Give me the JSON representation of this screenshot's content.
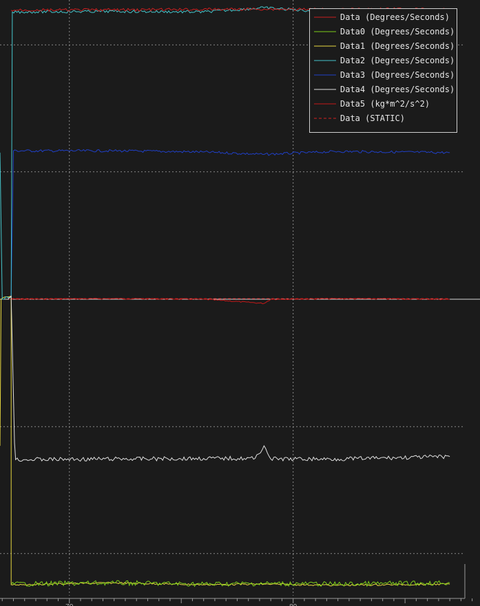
{
  "chart_data": {
    "type": "line",
    "title": "",
    "xlabel": "",
    "ylabel": "",
    "xlim": [
      66.9,
      88.35
    ],
    "ylim": [
      0,
      1
    ],
    "grid": true,
    "legend_placement": "top-right",
    "x_ticks": [
      {
        "value": 70,
        "label": "70"
      },
      {
        "value": 80,
        "label": "80"
      }
    ],
    "series": [
      {
        "name": "Data (Degrees/Seconds)",
        "color": "#cc1f1f",
        "style": "solid",
        "points": [
          [
            67.4,
            0.983
          ],
          [
            75.0,
            0.984
          ],
          [
            78.7,
            0.985
          ],
          [
            82.0,
            0.984
          ],
          [
            85.0,
            0.985
          ],
          [
            87.0,
            0.984
          ]
        ]
      },
      {
        "name": "Data0 (Degrees/Seconds)",
        "color": "#7ecf1a",
        "style": "solid",
        "points": [
          [
            67.4,
            0.024
          ],
          [
            72.0,
            0.026
          ],
          [
            76.0,
            0.024
          ],
          [
            78.7,
            0.025
          ],
          [
            82.0,
            0.024
          ],
          [
            87.0,
            0.026
          ]
        ]
      },
      {
        "name": "Data1 (Degrees/Seconds)",
        "color": "#e8d840",
        "style": "solid",
        "points": [
          [
            66.9,
            0.255
          ],
          [
            66.95,
            0.5
          ],
          [
            67.2,
            0.504
          ],
          [
            67.4,
            0.505
          ],
          [
            67.4,
            0.023
          ],
          [
            72.0,
            0.026
          ],
          [
            76.0,
            0.023
          ],
          [
            78.7,
            0.024
          ],
          [
            82.0,
            0.022
          ],
          [
            87.0,
            0.024
          ]
        ]
      },
      {
        "name": "Data2 (Degrees/Seconds)",
        "color": "#46c6cc",
        "style": "solid",
        "points": [
          [
            66.9,
            0.745
          ],
          [
            67.0,
            0.5
          ],
          [
            67.25,
            0.503
          ],
          [
            67.4,
            0.503
          ],
          [
            67.45,
            0.98
          ],
          [
            72.0,
            0.981
          ],
          [
            76.0,
            0.98
          ],
          [
            78.7,
            0.987
          ],
          [
            82.0,
            0.979
          ],
          [
            87.0,
            0.98
          ]
        ]
      },
      {
        "name": "Data3 (Degrees/Seconds)",
        "color": "#2040c8",
        "style": "solid",
        "points": [
          [
            67.4,
            0.505
          ],
          [
            67.5,
            0.748
          ],
          [
            72.0,
            0.748
          ],
          [
            76.0,
            0.746
          ],
          [
            78.7,
            0.742
          ],
          [
            82.0,
            0.747
          ],
          [
            87.0,
            0.745
          ]
        ]
      },
      {
        "name": "Data4 (Degrees/Seconds)",
        "color": "#e0e0e0",
        "style": "solid",
        "points": [
          [
            67.25,
            0.5
          ],
          [
            67.4,
            0.505
          ],
          [
            67.55,
            0.26
          ],
          [
            67.6,
            0.232
          ],
          [
            72.0,
            0.233
          ],
          [
            76.0,
            0.234
          ],
          [
            78.3,
            0.234
          ],
          [
            78.7,
            0.255
          ],
          [
            79.0,
            0.233
          ],
          [
            82.0,
            0.233
          ],
          [
            87.0,
            0.237
          ]
        ]
      },
      {
        "name": "Data5 (kg*m^2/s^2)",
        "color": "#c41818",
        "style": "solid",
        "points": [
          [
            67.3,
            0.5
          ],
          [
            72.0,
            0.501
          ],
          [
            76.0,
            0.5
          ],
          [
            78.7,
            0.493
          ],
          [
            79.0,
            0.5
          ],
          [
            82.0,
            0.501
          ],
          [
            87.0,
            0.5
          ]
        ]
      },
      {
        "name": "Data (STATIC)",
        "color": "#d42020",
        "style": "dashed",
        "points": [
          [
            67.4,
            0.501
          ],
          [
            87.0,
            0.501
          ]
        ]
      }
    ]
  }
}
